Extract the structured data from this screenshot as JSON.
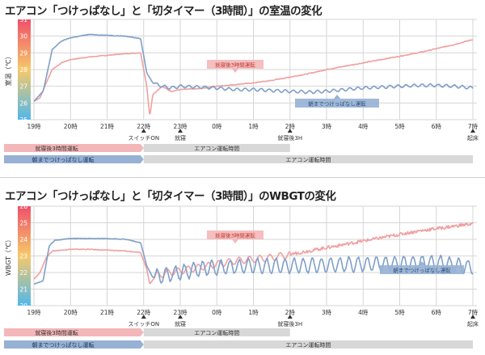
{
  "page": {
    "title1": "エアコン「つけっぱなし」と「切タイマー（3時間）」の室温の変化",
    "title2": "エアコン「つけっぱなし」と「切タイマー（3時間）」のWBGTの変化"
  },
  "x_ticks": [
    "19時",
    "20時",
    "21時",
    "22時",
    "23時",
    "0時",
    "1時",
    "2時",
    "3時",
    "4時",
    "5時",
    "6時",
    "7時"
  ],
  "events": [
    {
      "hour": 22,
      "label": "スイッチON"
    },
    {
      "hour": 23,
      "label": "就寝"
    },
    {
      "hour": 2,
      "label": "就寝後3H"
    },
    {
      "hour": 7,
      "label": "起床"
    }
  ],
  "bars": {
    "timer_label": "就寝後3時間運転",
    "always_label": "朝までつけっぱなし運転",
    "op_timer_label": "エアコン運転時間",
    "op_always_label": "エアコン運転時間"
  },
  "colors": {
    "timer": "#f0a0a0",
    "always": "#7f9fc9",
    "timer_bar": "#f4b7b9",
    "always_bar": "#96b1d4",
    "op_bar": "#d8d8d8",
    "grid": "#d6d6d6",
    "axis_band_top": "#f0506a",
    "axis_band_bottom": "#52b7ea"
  },
  "chart_data": [
    {
      "type": "line",
      "title": "エアコン「つけっぱなし」と「切タイマー（3時間）」の室温の変化",
      "ylabel": "室温（℃）",
      "ylim": [
        25,
        31
      ],
      "yticks": [
        25,
        26,
        27,
        28,
        29,
        30,
        31
      ],
      "xlim": [
        "18:50",
        "7:05"
      ],
      "annotations": [
        "就寝後3時間運転",
        "朝までつけっぱなし運転"
      ],
      "series": [
        {
          "name": "就寝後3時間運転",
          "color": "#f0a0a0",
          "points": [
            [
              "19:00",
              26.1
            ],
            [
              "19:10",
              26.3
            ],
            [
              "19:20",
              27.2
            ],
            [
              "19:30",
              28.0
            ],
            [
              "19:45",
              28.4
            ],
            [
              "20:00",
              28.6
            ],
            [
              "20:30",
              28.75
            ],
            [
              "21:00",
              28.85
            ],
            [
              "21:30",
              28.95
            ],
            [
              "21:55",
              29.0
            ],
            [
              "22:05",
              27.0
            ],
            [
              "22:10",
              25.2
            ],
            [
              "22:15",
              26.5
            ],
            [
              "22:30",
              27.0
            ],
            [
              "22:45",
              26.7
            ],
            [
              "23:00",
              26.8
            ],
            [
              "23:30",
              26.85
            ],
            [
              "0:00",
              27.0
            ],
            [
              "0:30",
              27.1
            ],
            [
              "1:00",
              27.2
            ],
            [
              "1:30",
              27.35
            ],
            [
              "2:00",
              27.55
            ],
            [
              "2:30",
              27.75
            ],
            [
              "3:00",
              28.0
            ],
            [
              "3:30",
              28.2
            ],
            [
              "4:00",
              28.4
            ],
            [
              "4:30",
              28.6
            ],
            [
              "5:00",
              28.8
            ],
            [
              "5:30",
              29.0
            ],
            [
              "6:00",
              29.25
            ],
            [
              "6:30",
              29.5
            ],
            [
              "7:00",
              29.8
            ]
          ]
        },
        {
          "name": "朝までつけっぱなし運転",
          "color": "#7f9fc9",
          "points": [
            [
              "19:00",
              26.1
            ],
            [
              "19:15",
              26.7
            ],
            [
              "19:20",
              27.5
            ],
            [
              "19:30",
              29.2
            ],
            [
              "19:45",
              29.7
            ],
            [
              "20:00",
              29.9
            ],
            [
              "20:30",
              30.1
            ],
            [
              "21:00",
              30.05
            ],
            [
              "21:30",
              30.0
            ],
            [
              "21:55",
              29.85
            ],
            [
              "22:05",
              27.8
            ],
            [
              "22:15",
              27.2
            ],
            [
              "22:30",
              27.0
            ],
            [
              "22:45",
              26.9
            ],
            [
              "23:00",
              27.0
            ],
            [
              "23:30",
              26.95
            ],
            [
              "0:00",
              26.9
            ],
            [
              "0:30",
              26.8
            ],
            [
              "1:00",
              26.8
            ],
            [
              "1:30",
              26.75
            ],
            [
              "2:00",
              26.7
            ],
            [
              "2:30",
              26.65
            ],
            [
              "3:00",
              26.7
            ],
            [
              "3:30",
              26.8
            ],
            [
              "4:00",
              26.9
            ],
            [
              "4:30",
              26.95
            ],
            [
              "5:00",
              27.0
            ],
            [
              "5:30",
              27.05
            ],
            [
              "6:00",
              27.05
            ],
            [
              "6:30",
              27.0
            ],
            [
              "7:00",
              26.9
            ]
          ]
        }
      ]
    },
    {
      "type": "line",
      "title": "エアコン「つけっぱなし」と「切タイマー（3時間）」のWBGTの変化",
      "ylabel": "WBGT（℃）",
      "ylim": [
        20,
        26
      ],
      "yticks": [
        20,
        21,
        22,
        23,
        24,
        25,
        26
      ],
      "xlim": [
        "18:50",
        "7:05"
      ],
      "annotations": [
        "就寝後3時間運転",
        "朝までつけっぱなし運転"
      ],
      "series": [
        {
          "name": "就寝後3時間運転",
          "color": "#f0a0a0",
          "points": [
            [
              "19:00",
              21.6
            ],
            [
              "19:10",
              22.0
            ],
            [
              "19:20",
              22.9
            ],
            [
              "19:30",
              23.3
            ],
            [
              "20:00",
              23.4
            ],
            [
              "20:30",
              23.4
            ],
            [
              "21:00",
              23.35
            ],
            [
              "21:30",
              23.3
            ],
            [
              "21:55",
              23.2
            ],
            [
              "22:05",
              22.2
            ],
            [
              "22:10",
              21.3
            ],
            [
              "22:20",
              21.8
            ],
            [
              "22:40",
              22.0
            ],
            [
              "23:00",
              22.1
            ],
            [
              "23:30",
              22.3
            ],
            [
              "0:00",
              22.5
            ],
            [
              "0:30",
              22.7
            ],
            [
              "1:00",
              22.8
            ],
            [
              "1:30",
              22.9
            ],
            [
              "2:00",
              23.1
            ],
            [
              "2:30",
              23.3
            ],
            [
              "3:00",
              23.5
            ],
            [
              "3:30",
              23.7
            ],
            [
              "4:00",
              23.9
            ],
            [
              "4:30",
              24.1
            ],
            [
              "5:00",
              24.3
            ],
            [
              "5:30",
              24.5
            ],
            [
              "6:00",
              24.65
            ],
            [
              "6:30",
              24.8
            ],
            [
              "7:00",
              24.95
            ]
          ]
        },
        {
          "name": "朝までつけっぱなし運転",
          "color": "#7f9fc9",
          "points": [
            [
              "19:00",
              21.3
            ],
            [
              "19:15",
              21.5
            ],
            [
              "19:25",
              23.6
            ],
            [
              "19:35",
              23.95
            ],
            [
              "20:00",
              24.05
            ],
            [
              "20:30",
              24.05
            ],
            [
              "21:00",
              24.05
            ],
            [
              "21:30",
              24.0
            ],
            [
              "21:55",
              23.8
            ],
            [
              "22:05",
              22.4
            ],
            [
              "22:15",
              21.7
            ],
            [
              "22:30",
              21.8
            ],
            [
              "23:00",
              22.0
            ],
            [
              "23:30",
              22.2
            ],
            [
              "0:00",
              22.3
            ],
            [
              "1:00",
              22.4
            ],
            [
              "2:00",
              22.4
            ],
            [
              "3:00",
              22.45
            ],
            [
              "4:00",
              22.5
            ],
            [
              "5:00",
              22.55
            ],
            [
              "6:00",
              22.6
            ],
            [
              "7:00",
              22.3
            ]
          ]
        }
      ]
    }
  ]
}
